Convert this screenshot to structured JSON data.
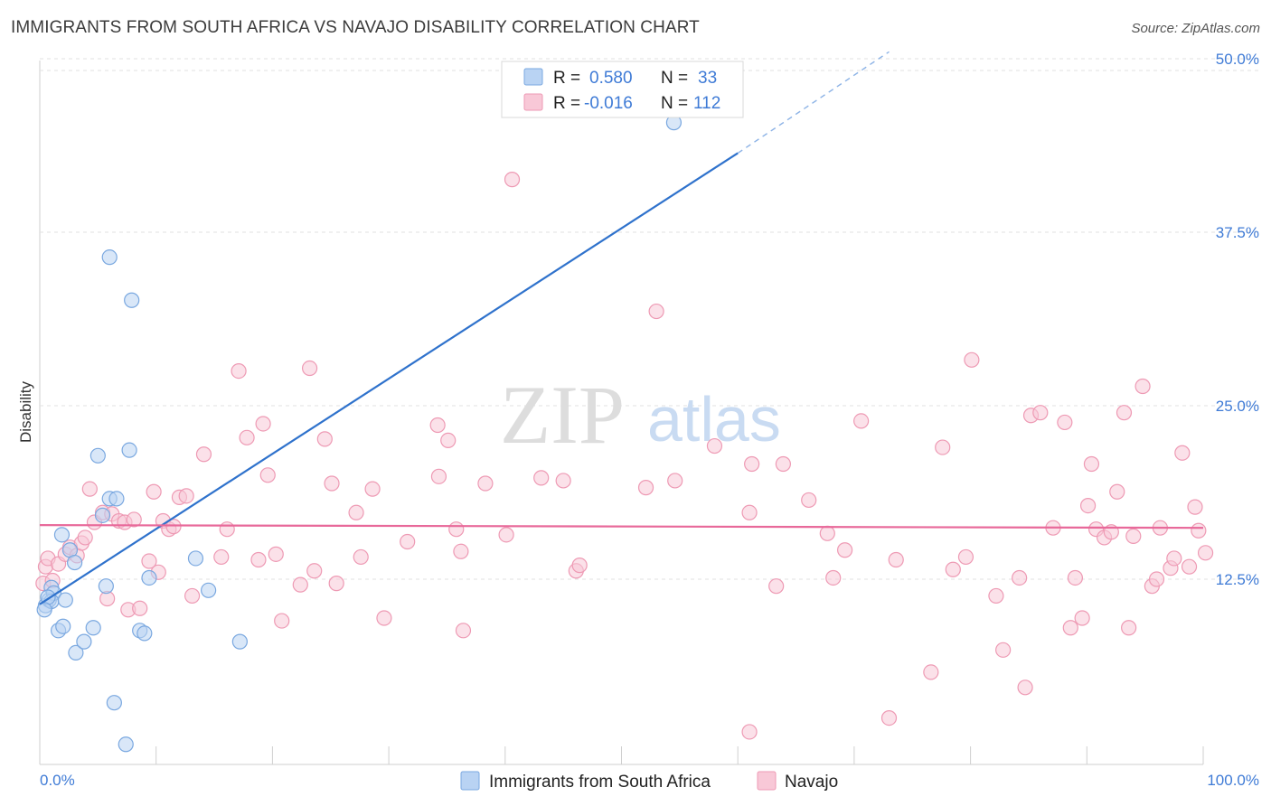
{
  "header": {
    "title": "IMMIGRANTS FROM SOUTH AFRICA VS NAVAJO DISABILITY CORRELATION CHART",
    "source": "Source: ZipAtlas.com"
  },
  "watermark": {
    "zip": "ZIP",
    "atlas": "atlas"
  },
  "legend_top": {
    "rows": [
      {
        "r_label": "R =",
        "r_value": "0.580",
        "n_label": "N =",
        "n_value": "33"
      },
      {
        "r_label": "R =",
        "r_value": "-0.016",
        "n_label": "N =",
        "n_value": "112"
      }
    ]
  },
  "legend_bottom": {
    "series1": "Immigrants from South Africa",
    "series2": "Navajo"
  },
  "colors": {
    "blue_fill": "#b9d3f3",
    "blue_stroke": "#7aa8e0",
    "blue_line": "#2f72cc",
    "pink_fill": "#f8c8d7",
    "pink_stroke": "#ee9ab4",
    "pink_line": "#e8699a",
    "grid": "#e0e0e0",
    "tick_text": "#3f7bd6"
  },
  "chart_data": {
    "type": "scatter",
    "title": "IMMIGRANTS FROM SOUTH AFRICA VS NAVAJO DISABILITY CORRELATION CHART",
    "xlabel": "",
    "ylabel": "Disability",
    "xlim": [
      0,
      100
    ],
    "ylim": [
      0,
      50
    ],
    "x_tick_labels": [
      "0.0%",
      "100.0%"
    ],
    "y_ticks": [
      12.5,
      25.0,
      37.5,
      50.0
    ],
    "y_tick_labels": [
      "12.5%",
      "25.0%",
      "37.5%",
      "50.0%"
    ],
    "grid": true,
    "legend_position": "bottom-center",
    "series": [
      {
        "name": "Immigrants from South Africa",
        "color": "#b9d3f3",
        "trend": {
          "r": 0.58,
          "n": 33,
          "x0": 0,
          "y0": 10.7,
          "x1": 60,
          "y1": 43.2,
          "dashed_to_x": 73,
          "dashed_to_y": 50.5
        },
        "points": [
          [
            0.5,
            10.6
          ],
          [
            0.8,
            11.0
          ],
          [
            1.0,
            11.9
          ],
          [
            1.2,
            11.5
          ],
          [
            1.0,
            10.9
          ],
          [
            0.7,
            11.2
          ],
          [
            0.4,
            10.3
          ],
          [
            1.6,
            8.8
          ],
          [
            2.0,
            9.1
          ],
          [
            2.2,
            11.0
          ],
          [
            2.6,
            14.6
          ],
          [
            3.0,
            13.7
          ],
          [
            1.9,
            15.7
          ],
          [
            3.1,
            7.2
          ],
          [
            3.8,
            8.0
          ],
          [
            4.6,
            9.0
          ],
          [
            5.4,
            17.1
          ],
          [
            6.0,
            18.3
          ],
          [
            6.6,
            18.3
          ],
          [
            5.0,
            21.4
          ],
          [
            6.4,
            3.6
          ],
          [
            7.7,
            21.8
          ],
          [
            6.0,
            35.7
          ],
          [
            7.9,
            32.6
          ],
          [
            7.4,
            0.6
          ],
          [
            8.6,
            8.8
          ],
          [
            9.0,
            8.6
          ],
          [
            9.4,
            12.6
          ],
          [
            5.7,
            12.0
          ],
          [
            13.4,
            14.0
          ],
          [
            14.5,
            11.7
          ],
          [
            17.2,
            8.0
          ],
          [
            54.5,
            45.4
          ]
        ]
      },
      {
        "name": "Navajo",
        "color": "#f8c8d7",
        "trend": {
          "r": -0.016,
          "n": 112,
          "x0": 0,
          "y0": 16.4,
          "x1": 100,
          "y1": 16.2
        },
        "points": [
          [
            0.3,
            12.2
          ],
          [
            0.5,
            13.4
          ],
          [
            0.7,
            14.0
          ],
          [
            1.1,
            12.4
          ],
          [
            1.6,
            13.6
          ],
          [
            2.2,
            14.3
          ],
          [
            2.6,
            14.8
          ],
          [
            3.2,
            14.2
          ],
          [
            3.6,
            15.1
          ],
          [
            3.9,
            15.5
          ],
          [
            4.3,
            19.0
          ],
          [
            4.7,
            16.6
          ],
          [
            5.4,
            17.3
          ],
          [
            5.8,
            11.1
          ],
          [
            6.2,
            17.2
          ],
          [
            6.8,
            16.7
          ],
          [
            7.3,
            16.6
          ],
          [
            7.6,
            10.3
          ],
          [
            8.1,
            16.8
          ],
          [
            8.6,
            10.4
          ],
          [
            9.4,
            13.8
          ],
          [
            9.8,
            18.8
          ],
          [
            10.2,
            13.0
          ],
          [
            10.6,
            16.7
          ],
          [
            11.1,
            16.1
          ],
          [
            11.5,
            16.3
          ],
          [
            12.0,
            18.4
          ],
          [
            12.6,
            18.5
          ],
          [
            13.1,
            11.3
          ],
          [
            14.1,
            21.5
          ],
          [
            15.6,
            14.1
          ],
          [
            16.1,
            16.1
          ],
          [
            17.1,
            27.5
          ],
          [
            17.8,
            22.7
          ],
          [
            18.8,
            13.9
          ],
          [
            19.2,
            23.7
          ],
          [
            19.6,
            20.0
          ],
          [
            20.3,
            14.3
          ],
          [
            20.8,
            9.5
          ],
          [
            22.4,
            12.1
          ],
          [
            23.2,
            27.7
          ],
          [
            23.6,
            13.1
          ],
          [
            24.5,
            22.6
          ],
          [
            25.1,
            19.4
          ],
          [
            25.5,
            12.2
          ],
          [
            27.2,
            17.3
          ],
          [
            27.6,
            14.1
          ],
          [
            28.6,
            19.0
          ],
          [
            29.6,
            9.7
          ],
          [
            31.6,
            15.2
          ],
          [
            34.2,
            23.6
          ],
          [
            34.3,
            19.9
          ],
          [
            35.1,
            22.5
          ],
          [
            35.8,
            16.1
          ],
          [
            36.2,
            14.5
          ],
          [
            36.4,
            8.8
          ],
          [
            38.3,
            19.4
          ],
          [
            40.1,
            15.7
          ],
          [
            40.6,
            41.3
          ],
          [
            43.1,
            19.8
          ],
          [
            45.0,
            19.6
          ],
          [
            46.1,
            13.1
          ],
          [
            46.4,
            13.5
          ],
          [
            52.1,
            19.1
          ],
          [
            53.0,
            31.8
          ],
          [
            54.6,
            19.6
          ],
          [
            58.0,
            22.1
          ],
          [
            61.0,
            17.3
          ],
          [
            61.2,
            20.8
          ],
          [
            63.3,
            12.0
          ],
          [
            63.9,
            20.8
          ],
          [
            61.0,
            1.5
          ],
          [
            66.1,
            18.2
          ],
          [
            67.7,
            15.8
          ],
          [
            68.2,
            12.6
          ],
          [
            69.2,
            14.6
          ],
          [
            70.6,
            23.9
          ],
          [
            73.0,
            2.5
          ],
          [
            73.6,
            13.9
          ],
          [
            76.6,
            5.8
          ],
          [
            77.6,
            22.0
          ],
          [
            78.5,
            13.2
          ],
          [
            79.6,
            14.1
          ],
          [
            80.1,
            28.3
          ],
          [
            82.2,
            11.3
          ],
          [
            82.8,
            7.4
          ],
          [
            84.2,
            12.6
          ],
          [
            84.7,
            4.7
          ],
          [
            85.2,
            24.3
          ],
          [
            86.0,
            24.5
          ],
          [
            87.1,
            16.2
          ],
          [
            88.1,
            23.8
          ],
          [
            88.6,
            9.0
          ],
          [
            89.0,
            12.6
          ],
          [
            89.6,
            9.7
          ],
          [
            90.1,
            17.8
          ],
          [
            90.4,
            20.8
          ],
          [
            90.8,
            16.1
          ],
          [
            91.5,
            15.5
          ],
          [
            92.1,
            15.9
          ],
          [
            92.6,
            18.8
          ],
          [
            93.2,
            24.5
          ],
          [
            93.6,
            9.0
          ],
          [
            94.0,
            15.6
          ],
          [
            94.8,
            26.4
          ],
          [
            95.6,
            12.0
          ],
          [
            96.0,
            12.5
          ],
          [
            96.3,
            16.2
          ],
          [
            97.2,
            13.3
          ],
          [
            97.5,
            14.0
          ],
          [
            98.2,
            21.6
          ],
          [
            98.8,
            13.4
          ],
          [
            99.3,
            17.7
          ],
          [
            99.6,
            16.0
          ],
          [
            100.2,
            14.4
          ]
        ]
      }
    ]
  }
}
